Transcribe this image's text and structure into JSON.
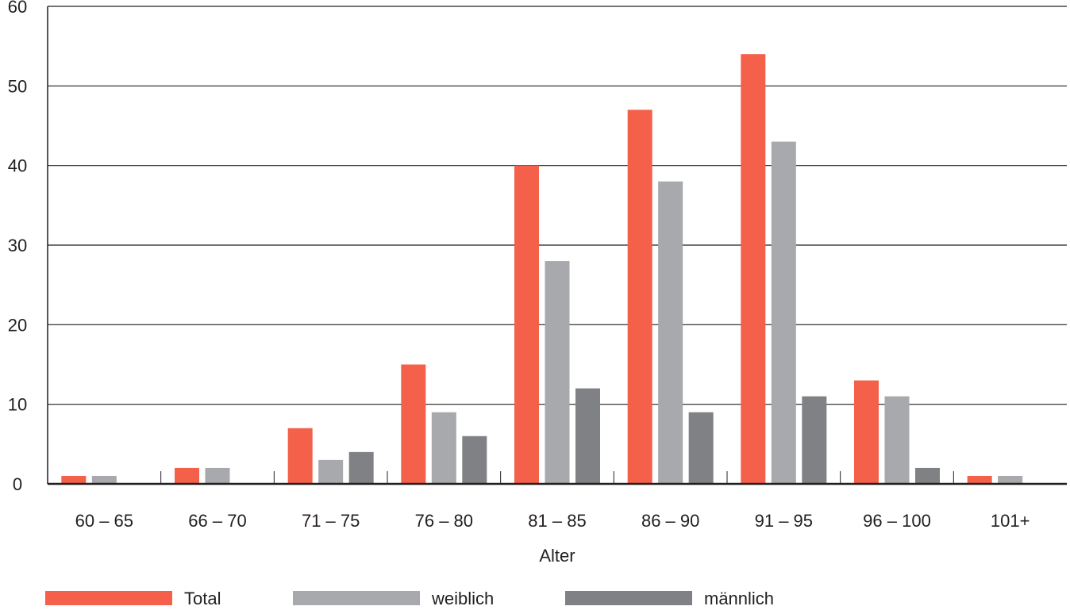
{
  "chart_data": {
    "type": "bar",
    "xlabel": "Alter",
    "ylabel": "",
    "ylim": [
      0,
      60
    ],
    "yticks": [
      0,
      10,
      20,
      30,
      40,
      50,
      60
    ],
    "grid": true,
    "legend_position": "bottom",
    "categories": [
      "60 – 65",
      "66 – 70",
      "71 – 75",
      "76 – 80",
      "81 – 85",
      "86 – 90",
      "91 – 95",
      "96 – 100",
      "101+"
    ],
    "series": [
      {
        "name": "Total",
        "color": "#f4604a",
        "values": [
          1,
          2,
          7,
          15,
          40,
          47,
          54,
          13,
          1
        ]
      },
      {
        "name": "weiblich",
        "color": "#a7a9ac",
        "values": [
          1,
          2,
          3,
          9,
          28,
          38,
          43,
          11,
          1
        ]
      },
      {
        "name": "männlich",
        "color": "#808184",
        "values": [
          0,
          0,
          4,
          6,
          12,
          9,
          11,
          2,
          0
        ]
      }
    ]
  }
}
